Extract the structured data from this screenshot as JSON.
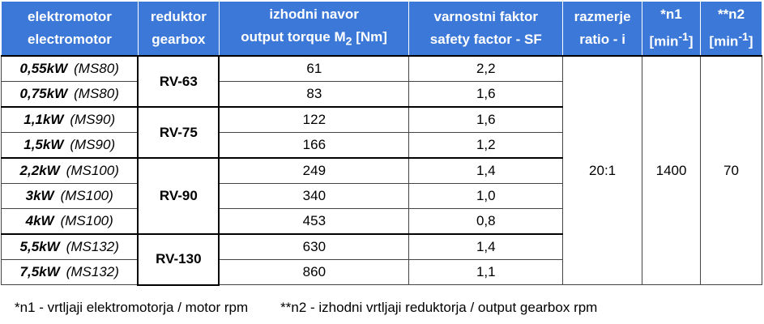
{
  "header": [
    {
      "top": "elektromotor",
      "bottom": "electromotor"
    },
    {
      "top": "reduktor",
      "bottom": "gearbox"
    },
    {
      "top": "izhodni navor",
      "bottom": "output torque M",
      "bottom_sub": "2",
      "bottom_after": "[Nm]"
    },
    {
      "top": "varnostni faktor",
      "bottom": "safety factor - SF"
    },
    {
      "top": "razmerje",
      "bottom": "ratio  - i"
    },
    {
      "top": "*n1",
      "bottom": "[min",
      "bottom_sup": "-1",
      "bottom_after": "]"
    },
    {
      "top": "**n2",
      "bottom": "[min",
      "bottom_sup": "-1",
      "bottom_after": "]"
    }
  ],
  "groups": [
    {
      "gearbox": "RV-63",
      "rows": [
        {
          "power": "0,55kW",
          "frame": "(MS80)",
          "torque": 61,
          "sf": "2,2"
        },
        {
          "power": "0,75kW",
          "frame": "(MS80)",
          "torque": 83,
          "sf": "1,6"
        }
      ]
    },
    {
      "gearbox": "RV-75",
      "rows": [
        {
          "power": "1,1kW",
          "frame": "(MS90)",
          "torque": 122,
          "sf": "1,6"
        },
        {
          "power": "1,5kW",
          "frame": "(MS90)",
          "torque": 166,
          "sf": "1,2"
        }
      ]
    },
    {
      "gearbox": "RV-90",
      "rows": [
        {
          "power": "2,2kW",
          "frame": "(MS100)",
          "torque": 249,
          "sf": "1,4"
        },
        {
          "power": "3kW",
          "frame": "(MS100)",
          "torque": 340,
          "sf": "1,0"
        },
        {
          "power": "4kW",
          "frame": "(MS100)",
          "torque": 453,
          "sf": "0,8"
        }
      ]
    },
    {
      "gearbox": "RV-130",
      "rows": [
        {
          "power": "5,5kW",
          "frame": "(MS132)",
          "torque": 630,
          "sf": "1,4"
        },
        {
          "power": "7,5kW",
          "frame": "(MS132)",
          "torque": 860,
          "sf": "1,1"
        }
      ]
    }
  ],
  "shared": {
    "ratio": "20:1",
    "n1": 1400,
    "n2": 70
  },
  "footnotes": [
    "*n1 - vrtljaji elektromotorja / motor rpm",
    "**n2 - izhodni vrtljaji reduktorja / output gearbox rpm"
  ]
}
